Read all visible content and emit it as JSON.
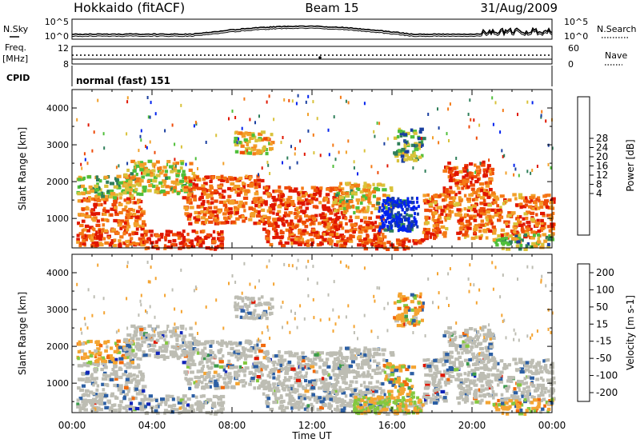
{
  "header": {
    "station": "Hokkaido (fitACF)",
    "beam": "Beam 15",
    "date": "31/Aug/2009"
  },
  "summary": {
    "nsky_label": "N.Sky",
    "nsky_ticks": [
      "10^5",
      "10^0"
    ],
    "nsearch_label": "N.Search",
    "freq_label": "Freq.",
    "freq_unit": "[MHz]",
    "freq_ticks": [
      "12",
      "8"
    ],
    "nave_label": "Nave",
    "nave_ticks": [
      "60",
      "0"
    ],
    "cpid_label": "CPID",
    "cpid_value": "normal (fast) 151"
  },
  "colors": {
    "power_bar": [
      "#0022ee",
      "#1a3fa0",
      "#2f7f5a",
      "#4fbf3a",
      "#d9c23a",
      "#f2a02a",
      "#f47a16",
      "#ee4a08",
      "#e01600"
    ],
    "velocity_bar": [
      "#e01600",
      "#f26a0c",
      "#f4a431",
      "#c0c0b8",
      "#c0c0b8",
      "#84c840",
      "#3c9a4c",
      "#2c5fa4",
      "#1024b8"
    ],
    "ground_scatter": "#bdbdb3"
  },
  "chart_data": [
    {
      "type": "heatmap",
      "name": "power",
      "ylabel": "Slant Range [km]",
      "yticks": [
        "1000",
        "2000",
        "3000",
        "4000"
      ],
      "ylim": [
        200,
        4500
      ],
      "xlim_hours": [
        0,
        24
      ],
      "colorbar": {
        "label": "Power [dB]",
        "ticks": [
          "28",
          "24",
          "20",
          "16",
          "12",
          "8",
          "4"
        ],
        "range": [
          0,
          32
        ]
      },
      "echo_bands": [
        {
          "t0": 0.2,
          "t1": 3.5,
          "r0": 300,
          "r1": 1600,
          "level": 0.8
        },
        {
          "t0": 0.2,
          "t1": 3.0,
          "r0": 1600,
          "r1": 2200,
          "level": 0.45
        },
        {
          "t0": 2.5,
          "t1": 6.0,
          "r0": 1700,
          "r1": 2600,
          "level": 0.55
        },
        {
          "t0": 3.5,
          "t1": 7.5,
          "r0": 200,
          "r1": 700,
          "level": 0.9
        },
        {
          "t0": 5.5,
          "t1": 9.5,
          "r0": 900,
          "r1": 2200,
          "level": 0.8
        },
        {
          "t0": 8.0,
          "t1": 10.0,
          "r0": 2800,
          "r1": 3400,
          "level": 0.6
        },
        {
          "t0": 9.5,
          "t1": 13.5,
          "r0": 300,
          "r1": 1900,
          "level": 0.85
        },
        {
          "t0": 12.5,
          "t1": 15.5,
          "r0": 300,
          "r1": 1100,
          "level": 0.8
        },
        {
          "t0": 13.0,
          "t1": 16.0,
          "r0": 1200,
          "r1": 2000,
          "level": 0.55
        },
        {
          "t0": 14.5,
          "t1": 17.5,
          "r0": 200,
          "r1": 500,
          "level": 0.95
        },
        {
          "t0": 15.5,
          "t1": 17.0,
          "r0": 700,
          "r1": 1600,
          "level": 0.15
        },
        {
          "t0": 16.0,
          "t1": 17.5,
          "r0": 2600,
          "r1": 3500,
          "level": 0.35
        },
        {
          "t0": 17.5,
          "t1": 24.0,
          "r0": 500,
          "r1": 1700,
          "level": 0.75
        },
        {
          "t0": 18.5,
          "t1": 21.0,
          "r0": 1700,
          "r1": 2600,
          "level": 0.85
        },
        {
          "t0": 21.0,
          "t1": 24.0,
          "r0": 200,
          "r1": 600,
          "level": 0.4
        }
      ]
    },
    {
      "type": "heatmap",
      "name": "velocity",
      "ylabel": "Slant Range [km]",
      "yticks": [
        "1000",
        "2000",
        "3000",
        "4000"
      ],
      "ylim": [
        200,
        4500
      ],
      "xlabel": "Time UT",
      "xticks": [
        "00:00",
        "04:00",
        "08:00",
        "12:00",
        "16:00",
        "20:00",
        "00:00"
      ],
      "xlim_hours": [
        0,
        24
      ],
      "colorbar": {
        "label": "Velocity [m s-1]",
        "ticks": [
          "200",
          "100",
          "50",
          "15",
          "-15",
          "-50",
          "-100",
          "-200"
        ],
        "range": [
          -250,
          250
        ]
      }
    }
  ]
}
